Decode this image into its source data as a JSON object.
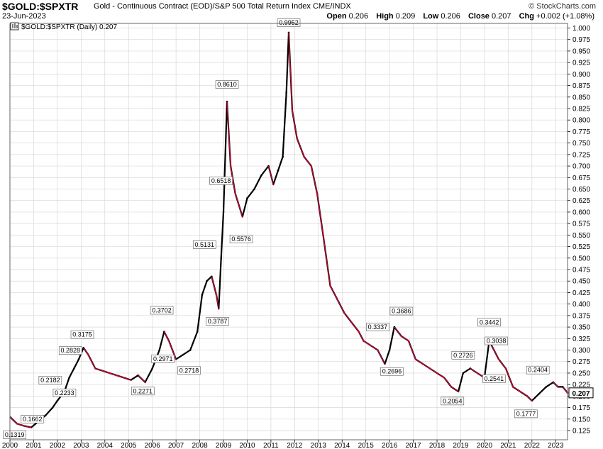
{
  "header": {
    "symbol": "$GOLD:$SPXTR",
    "description": "Gold - Continuous Contract (EOD)/S&P 500 Total Return Index  CME/INDX",
    "date": "23-Jun-2023",
    "brand": "© StockCharts.com",
    "open_label": "Open",
    "open": "0.206",
    "high_label": "High",
    "high": "0.209",
    "low_label": "Low",
    "low": "0.206",
    "close_label": "Close",
    "close": "0.207",
    "chg_label": "Chg",
    "chg": "+0.002 (+1.08%)"
  },
  "legend": {
    "icon": "candlestick-icon",
    "text": "$GOLD:$SPXTR (Daily) 0.207"
  },
  "colors": {
    "up": "#000000",
    "down": "#cc0033",
    "grid": "#d8d8d8",
    "frame": "#666666"
  },
  "chart_data": {
    "type": "line",
    "title": "$GOLD:$SPXTR (Daily) 0.207",
    "x_ticks": [
      "2000",
      "2001",
      "2002",
      "2003",
      "2004",
      "2005",
      "2006",
      "2007",
      "2008",
      "2009",
      "2010",
      "2011",
      "2012",
      "2013",
      "2014",
      "2015",
      "2016",
      "2017",
      "2018",
      "2019",
      "2020",
      "2021",
      "2022",
      "2023"
    ],
    "xlim": [
      2000.0,
      2023.5
    ],
    "ylim": [
      0.105,
      1.01
    ],
    "y_ticks": [
      0.125,
      0.15,
      0.175,
      0.2,
      0.225,
      0.25,
      0.275,
      0.3,
      0.325,
      0.35,
      0.375,
      0.4,
      0.425,
      0.45,
      0.475,
      0.5,
      0.525,
      0.55,
      0.575,
      0.6,
      0.625,
      0.65,
      0.675,
      0.7,
      0.725,
      0.75,
      0.775,
      0.8,
      0.825,
      0.85,
      0.875,
      0.9,
      0.925,
      0.95,
      0.975,
      1.0
    ],
    "y_tick_labels": [
      "0.125",
      "0.150",
      "0.175",
      "0.200",
      "0.225",
      "0.250",
      "0.275",
      "0.300",
      "0.325",
      "0.350",
      "0.375",
      "0.400",
      "0.425",
      "0.450",
      "0.475",
      "0.500",
      "0.525",
      "0.550",
      "0.575",
      "0.600",
      "0.625",
      "0.650",
      "0.675",
      "0.700",
      "0.725",
      "0.750",
      "0.775",
      "0.800",
      "0.825",
      "0.850",
      "0.875",
      "0.900",
      "0.925",
      "0.950",
      "0.975",
      "1.000"
    ],
    "last_value": "0.207",
    "grid": true,
    "series": [
      {
        "x": [
          2000.0,
          2000.3,
          2000.6,
          2000.9,
          2001.2,
          2001.5,
          2001.8,
          2002.0,
          2002.3,
          2002.5,
          2002.7,
          2002.9,
          2003.1,
          2003.3,
          2003.6,
          2003.9,
          2004.2,
          2004.5,
          2004.8,
          2005.1,
          2005.4,
          2005.7,
          2006.0,
          2006.3,
          2006.5,
          2006.7,
          2007.0,
          2007.3,
          2007.6,
          2007.9,
          2008.1,
          2008.3,
          2008.5,
          2008.7,
          2008.8,
          2008.9,
          2009.0,
          2009.15,
          2009.3,
          2009.5,
          2009.8,
          2010.0,
          2010.3,
          2010.6,
          2010.9,
          2011.1,
          2011.3,
          2011.5,
          2011.65,
          2011.75,
          2011.9,
          2012.1,
          2012.4,
          2012.7,
          2012.95,
          2013.2,
          2013.5,
          2013.8,
          2014.1,
          2014.4,
          2014.7,
          2014.9,
          2015.2,
          2015.5,
          2015.8,
          2016.0,
          2016.2,
          2016.5,
          2016.8,
          2017.1,
          2017.4,
          2017.7,
          2018.0,
          2018.3,
          2018.6,
          2018.9,
          2019.1,
          2019.4,
          2019.7,
          2020.0,
          2020.2,
          2020.4,
          2020.6,
          2020.9,
          2021.2,
          2021.5,
          2021.8,
          2022.0,
          2022.3,
          2022.6,
          2022.9,
          2023.1,
          2023.3,
          2023.5
        ],
        "y": [
          0.155,
          0.14,
          0.135,
          0.132,
          0.145,
          0.158,
          0.175,
          0.19,
          0.21,
          0.24,
          0.26,
          0.28,
          0.305,
          0.29,
          0.26,
          0.255,
          0.25,
          0.245,
          0.24,
          0.235,
          0.245,
          0.23,
          0.26,
          0.3,
          0.34,
          0.32,
          0.28,
          0.29,
          0.3,
          0.34,
          0.42,
          0.45,
          0.46,
          0.42,
          0.39,
          0.5,
          0.6,
          0.84,
          0.7,
          0.64,
          0.59,
          0.63,
          0.65,
          0.68,
          0.7,
          0.66,
          0.69,
          0.72,
          0.86,
          0.99,
          0.82,
          0.76,
          0.72,
          0.7,
          0.64,
          0.55,
          0.44,
          0.41,
          0.38,
          0.36,
          0.34,
          0.32,
          0.31,
          0.3,
          0.27,
          0.3,
          0.35,
          0.33,
          0.32,
          0.28,
          0.27,
          0.26,
          0.25,
          0.24,
          0.22,
          0.21,
          0.25,
          0.26,
          0.25,
          0.24,
          0.32,
          0.3,
          0.28,
          0.26,
          0.22,
          0.21,
          0.2,
          0.19,
          0.205,
          0.22,
          0.23,
          0.22,
          0.22,
          0.207
        ]
      }
    ],
    "annotations": [
      {
        "x": 2000.2,
        "y": 0.1319,
        "label": "0.1319",
        "pos": "below"
      },
      {
        "x": 2000.95,
        "y": 0.1662,
        "label": "0.1662",
        "pos": "below"
      },
      {
        "x": 2001.7,
        "y": 0.2182,
        "label": "0.2182",
        "pos": "above"
      },
      {
        "x": 2002.3,
        "y": 0.2233,
        "label": "0.2233",
        "pos": "below"
      },
      {
        "x": 2002.55,
        "y": 0.2828,
        "label": "0.2828",
        "pos": "above"
      },
      {
        "x": 2003.05,
        "y": 0.3175,
        "label": "0.3175",
        "pos": "above"
      },
      {
        "x": 2005.6,
        "y": 0.2271,
        "label": "0.2271",
        "pos": "below"
      },
      {
        "x": 2006.4,
        "y": 0.3702,
        "label": "0.3702",
        "pos": "above"
      },
      {
        "x": 2006.45,
        "y": 0.2971,
        "label": "0.2971",
        "pos": "below"
      },
      {
        "x": 2007.55,
        "y": 0.2718,
        "label": "0.2718",
        "pos": "below"
      },
      {
        "x": 2008.2,
        "y": 0.5131,
        "label": "0.5131",
        "pos": "above"
      },
      {
        "x": 2008.75,
        "y": 0.3787,
        "label": "0.3787",
        "pos": "below"
      },
      {
        "x": 2008.9,
        "y": 0.6518,
        "label": "0.6518",
        "pos": "above"
      },
      {
        "x": 2009.15,
        "y": 0.861,
        "label": "0.8610",
        "pos": "above"
      },
      {
        "x": 2009.75,
        "y": 0.5576,
        "label": "0.5576",
        "pos": "below"
      },
      {
        "x": 2011.75,
        "y": 0.9952,
        "label": "0.9952",
        "pos": "above"
      },
      {
        "x": 2015.5,
        "y": 0.3337,
        "label": "0.3337",
        "pos": "above"
      },
      {
        "x": 2016.1,
        "y": 0.2696,
        "label": "0.2696",
        "pos": "below"
      },
      {
        "x": 2016.5,
        "y": 0.3686,
        "label": "0.3686",
        "pos": "above"
      },
      {
        "x": 2018.65,
        "y": 0.2054,
        "label": "0.2054",
        "pos": "below"
      },
      {
        "x": 2019.1,
        "y": 0.2726,
        "label": "0.2726",
        "pos": "above"
      },
      {
        "x": 2020.2,
        "y": 0.3442,
        "label": "0.3442",
        "pos": "above"
      },
      {
        "x": 2020.5,
        "y": 0.3038,
        "label": "0.3038",
        "pos": "above"
      },
      {
        "x": 2020.4,
        "y": 0.2541,
        "label": "0.2541",
        "pos": "below"
      },
      {
        "x": 2021.75,
        "y": 0.1777,
        "label": "0.1777",
        "pos": "below"
      },
      {
        "x": 2022.25,
        "y": 0.2404,
        "label": "0.2404",
        "pos": "above"
      }
    ]
  }
}
